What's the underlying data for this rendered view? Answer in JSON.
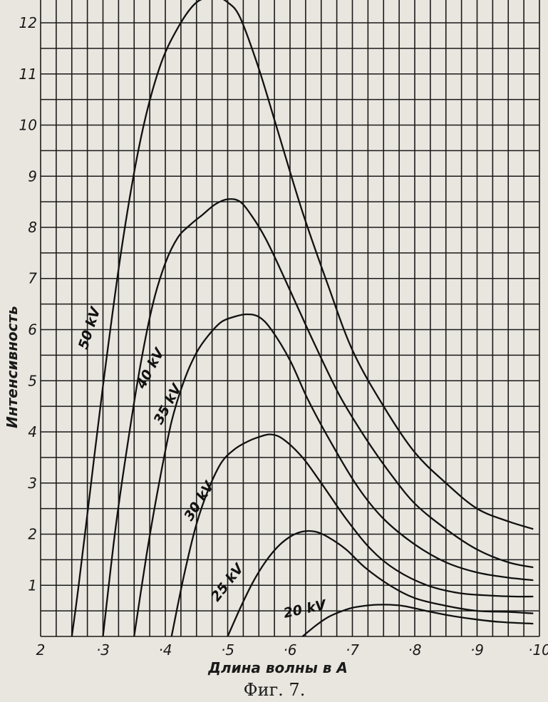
{
  "chart_data": {
    "type": "line",
    "title": "",
    "xlabel": "Длина волны в A",
    "ylabel": "Интенсивность",
    "caption": "Фиг. 7.",
    "xlim": [
      0.2,
      1.0
    ],
    "ylim": [
      0,
      12.5
    ],
    "grid": true,
    "x_ticks": [
      {
        "value": 0.2,
        "label": "2"
      },
      {
        "value": 0.3,
        "label": "·3"
      },
      {
        "value": 0.4,
        "label": "·4"
      },
      {
        "value": 0.5,
        "label": "·5"
      },
      {
        "value": 0.6,
        "label": "·6"
      },
      {
        "value": 0.7,
        "label": "·7"
      },
      {
        "value": 0.8,
        "label": "·8"
      },
      {
        "value": 0.9,
        "label": "·9"
      },
      {
        "value": 1.0,
        "label": "·10"
      }
    ],
    "y_ticks": [
      {
        "value": 1,
        "label": "1"
      },
      {
        "value": 2,
        "label": "2"
      },
      {
        "value": 3,
        "label": "3"
      },
      {
        "value": 4,
        "label": "4"
      },
      {
        "value": 5,
        "label": "5"
      },
      {
        "value": 6,
        "label": "6"
      },
      {
        "value": 7,
        "label": "7"
      },
      {
        "value": 8,
        "label": "8"
      },
      {
        "value": 9,
        "label": "9"
      },
      {
        "value": 10,
        "label": "10"
      },
      {
        "value": 11,
        "label": "11"
      },
      {
        "value": 12,
        "label": "12"
      }
    ],
    "series": [
      {
        "name": "50 kV",
        "label_at": [
          0.285,
          6.0
        ],
        "x": [
          0.25,
          0.26,
          0.28,
          0.3,
          0.33,
          0.36,
          0.39,
          0.42,
          0.45,
          0.48,
          0.5,
          0.52,
          0.55,
          0.58,
          0.62,
          0.66,
          0.7,
          0.75,
          0.8,
          0.85,
          0.9,
          0.95,
          0.99
        ],
        "y": [
          0,
          0.9,
          2.9,
          4.9,
          7.6,
          9.7,
          11.1,
          11.9,
          12.4,
          12.5,
          12.4,
          12.1,
          11.1,
          9.9,
          8.3,
          6.9,
          5.6,
          4.5,
          3.6,
          3.0,
          2.5,
          2.25,
          2.1
        ]
      },
      {
        "name": "40 kV",
        "label_at": [
          0.382,
          5.2
        ],
        "x": [
          0.3,
          0.32,
          0.34,
          0.36,
          0.38,
          0.4,
          0.42,
          0.44,
          0.46,
          0.48,
          0.5,
          0.52,
          0.54,
          0.56,
          0.58,
          0.61,
          0.64,
          0.68,
          0.72,
          0.76,
          0.8,
          0.85,
          0.9,
          0.95,
          0.99
        ],
        "y": [
          0,
          2.1,
          3.8,
          5.3,
          6.5,
          7.3,
          7.8,
          8.05,
          8.25,
          8.45,
          8.55,
          8.5,
          8.2,
          7.8,
          7.3,
          6.5,
          5.7,
          4.7,
          3.9,
          3.2,
          2.6,
          2.1,
          1.7,
          1.45,
          1.35
        ]
      },
      {
        "name": "35 kV",
        "label_at": [
          0.41,
          4.5
        ],
        "x": [
          0.35,
          0.37,
          0.39,
          0.41,
          0.43,
          0.45,
          0.47,
          0.49,
          0.51,
          0.53,
          0.55,
          0.57,
          0.6,
          0.63,
          0.67,
          0.71,
          0.75,
          0.8,
          0.85,
          0.9,
          0.95,
          0.99
        ],
        "y": [
          0,
          1.6,
          3.0,
          4.2,
          5.0,
          5.55,
          5.9,
          6.15,
          6.25,
          6.3,
          6.25,
          6.0,
          5.4,
          4.6,
          3.7,
          2.9,
          2.3,
          1.8,
          1.45,
          1.25,
          1.15,
          1.1
        ]
      },
      {
        "name": "30 kV",
        "label_at": [
          0.46,
          2.6
        ],
        "x": [
          0.41,
          0.43,
          0.45,
          0.47,
          0.49,
          0.51,
          0.53,
          0.55,
          0.57,
          0.59,
          0.62,
          0.65,
          0.69,
          0.73,
          0.77,
          0.82,
          0.87,
          0.92,
          0.96,
          0.99
        ],
        "y": [
          0,
          1.2,
          2.2,
          2.9,
          3.4,
          3.65,
          3.8,
          3.9,
          3.95,
          3.85,
          3.5,
          3.0,
          2.3,
          1.7,
          1.3,
          1.0,
          0.85,
          0.8,
          0.78,
          0.78
        ]
      },
      {
        "name": "25 kV",
        "label_at": [
          0.505,
          1.0
        ],
        "x": [
          0.5,
          0.52,
          0.54,
          0.56,
          0.58,
          0.6,
          0.62,
          0.64,
          0.66,
          0.69,
          0.72,
          0.76,
          0.8,
          0.85,
          0.9,
          0.95,
          0.99
        ],
        "y": [
          0,
          0.55,
          1.05,
          1.45,
          1.75,
          1.95,
          2.05,
          2.05,
          1.95,
          1.7,
          1.35,
          1.0,
          0.75,
          0.6,
          0.5,
          0.48,
          0.45
        ]
      },
      {
        "name": "20 kV",
        "label_at": [
          0.625,
          0.45
        ],
        "x": [
          0.62,
          0.64,
          0.66,
          0.68,
          0.7,
          0.72,
          0.74,
          0.76,
          0.78,
          0.8,
          0.83,
          0.86,
          0.9,
          0.94,
          0.99
        ],
        "y": [
          0,
          0.2,
          0.37,
          0.48,
          0.56,
          0.6,
          0.62,
          0.62,
          0.6,
          0.55,
          0.47,
          0.4,
          0.33,
          0.28,
          0.25
        ]
      }
    ]
  }
}
